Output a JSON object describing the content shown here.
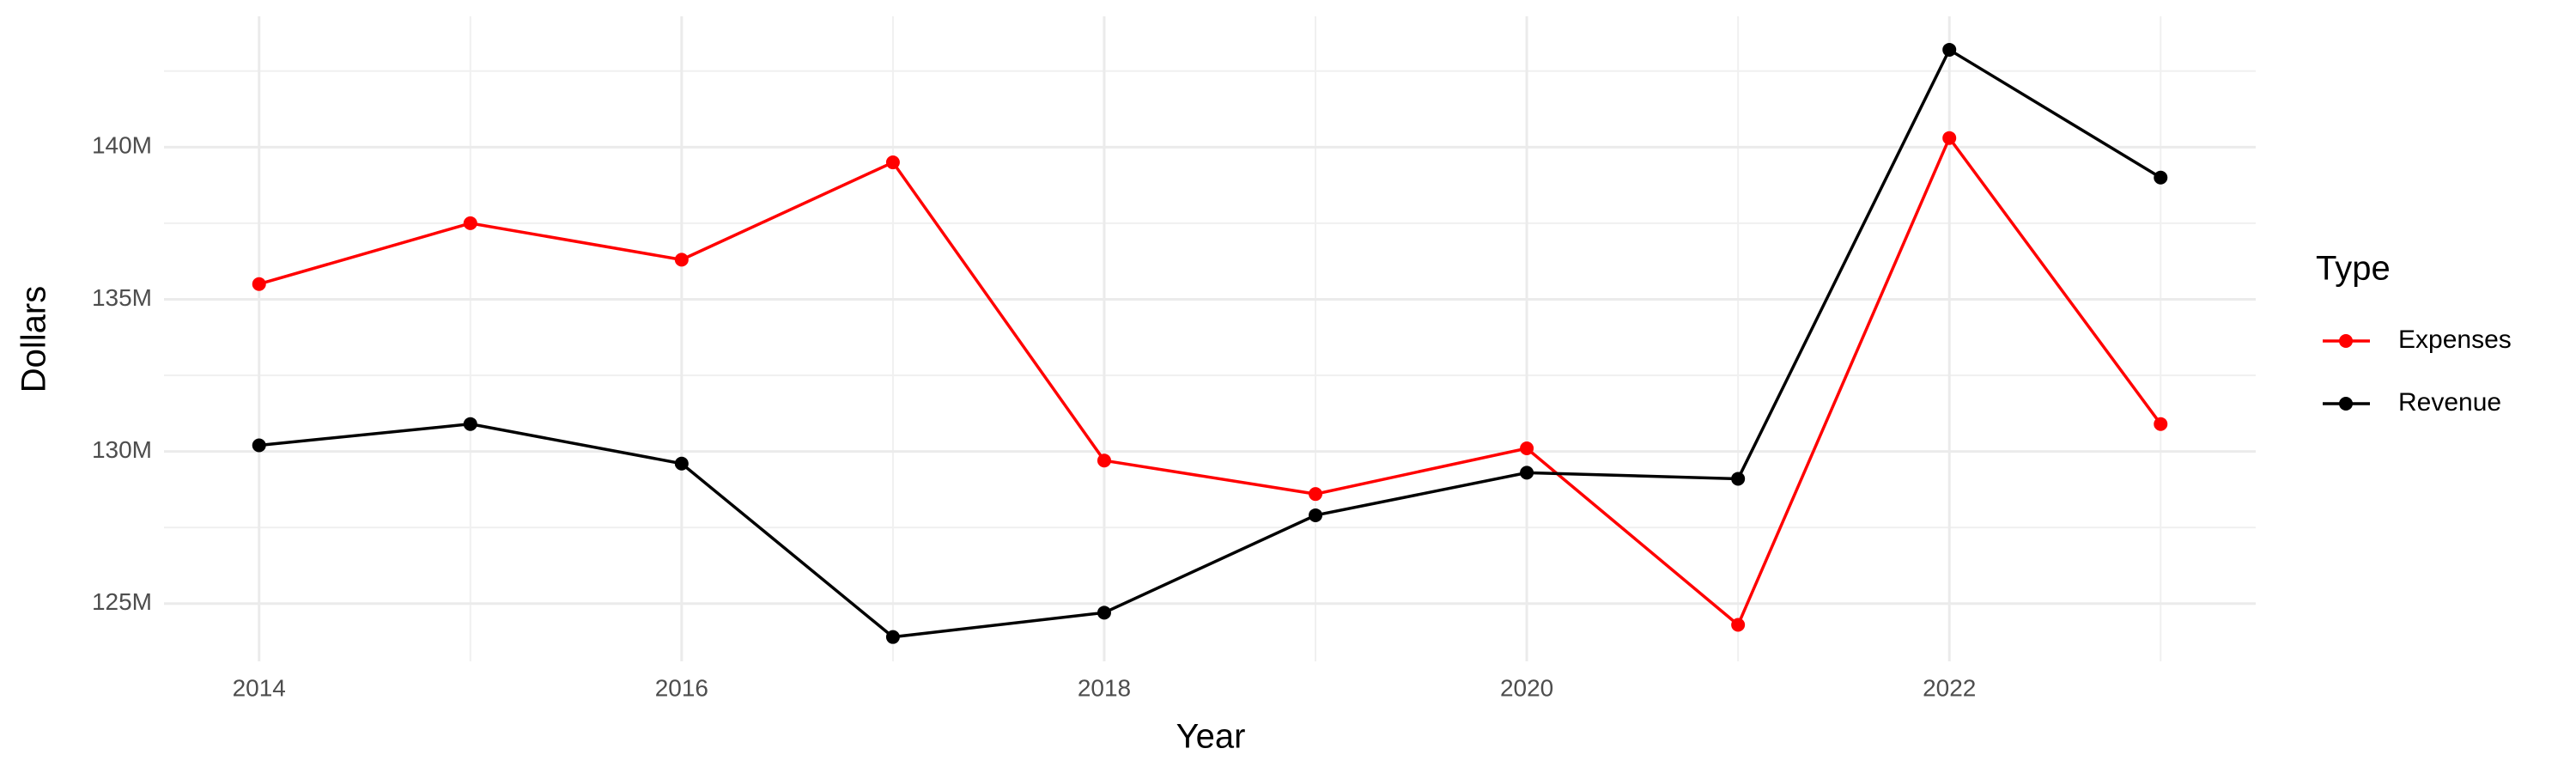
{
  "chart_data": {
    "type": "line",
    "x_label": "Year",
    "y_label": "Dollars",
    "legend_title": "Type",
    "x": [
      2014,
      2015,
      2016,
      2017,
      2018,
      2019,
      2020,
      2021,
      2022,
      2023
    ],
    "series": [
      {
        "name": "Expenses",
        "color": "#ff0000",
        "values": [
          135500000,
          137500000,
          136300000,
          139500000,
          129700000,
          128600000,
          130100000,
          124300000,
          140300000,
          130900000
        ]
      },
      {
        "name": "Revenue",
        "color": "#000000",
        "values": [
          130200000,
          130900000,
          129600000,
          123900000,
          124700000,
          127900000,
          129300000,
          129100000,
          143200000,
          139000000
        ]
      }
    ],
    "xlim": [
      2013.55,
      2023.45
    ],
    "xticks": [
      2014,
      2016,
      2018,
      2020,
      2022
    ],
    "ylim": [
      123100000,
      144300000
    ],
    "yticks": [
      {
        "value": 125000000,
        "label": "125M"
      },
      {
        "value": 130000000,
        "label": "130M"
      },
      {
        "value": 135000000,
        "label": "135M"
      },
      {
        "value": 140000000,
        "label": "140M"
      }
    ],
    "grid": true,
    "legend_position": "right"
  }
}
